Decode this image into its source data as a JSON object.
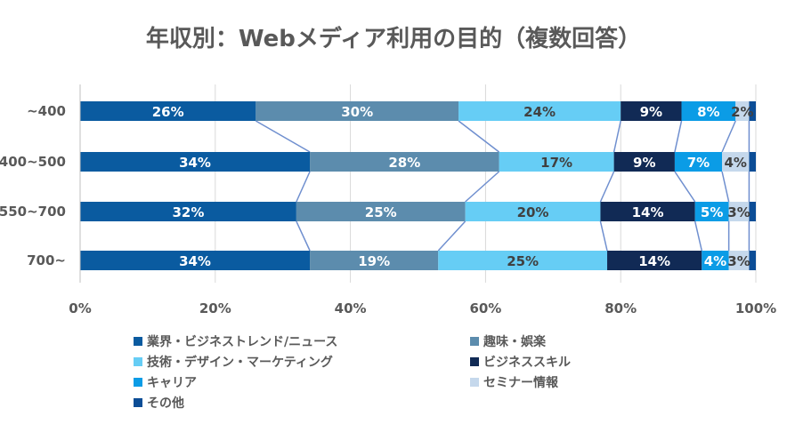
{
  "chart_data": {
    "type": "bar",
    "orientation": "horizontal",
    "stacked": "percent",
    "title": "年収別：Webメディア利用の目的（複数回答）",
    "categories": [
      "~400",
      "400~500",
      "550~700",
      "700~"
    ],
    "series": [
      {
        "name": "業界・ビジネストレンド/ニュース",
        "color": "#0a5ba0",
        "values": [
          26,
          34,
          32,
          34
        ],
        "labels": [
          "26%",
          "34%",
          "32%",
          "34%"
        ],
        "label_color": "#ffffff"
      },
      {
        "name": "趣味・娯楽",
        "color": "#5c8cad",
        "values": [
          30,
          28,
          25,
          19
        ],
        "labels": [
          "30%",
          "28%",
          "25%",
          "19%"
        ],
        "label_color": "#ffffff"
      },
      {
        "name": "技術・デザイン・マーケティング",
        "color": "#66cdf5",
        "values": [
          24,
          17,
          20,
          25
        ],
        "labels": [
          "24%",
          "17%",
          "20%",
          "25%"
        ],
        "label_color": "#404040"
      },
      {
        "name": "ビジネススキル",
        "color": "#112a55",
        "values": [
          9,
          9,
          14,
          14
        ],
        "labels": [
          "9%",
          "9%",
          "14%",
          "14%"
        ],
        "label_color": "#ffffff"
      },
      {
        "name": "キャリア",
        "color": "#0b9ce6",
        "values": [
          8,
          7,
          5,
          4
        ],
        "labels": [
          "8%",
          "7%",
          "5%",
          "4%"
        ],
        "label_color": "#ffffff"
      },
      {
        "name": "セミナー情報",
        "color": "#c5d8ec",
        "values": [
          2,
          4,
          3,
          3
        ],
        "labels": [
          "2%",
          "4%",
          "3%",
          "3%"
        ],
        "label_color": "#404040"
      },
      {
        "name": "その他",
        "color": "#0c4d96",
        "values": [
          1,
          1,
          1,
          1
        ],
        "labels": [
          "",
          "",
          "",
          ""
        ],
        "label_color": "#ffffff"
      }
    ],
    "xlim": [
      0,
      100
    ],
    "xticks": [
      "0%",
      "20%",
      "40%",
      "60%",
      "80%",
      "100%"
    ],
    "xlabel": "",
    "ylabel": "",
    "grid": true,
    "series_lines": true,
    "series_line_color": "#6f8fcf",
    "legend_position": "bottom"
  }
}
